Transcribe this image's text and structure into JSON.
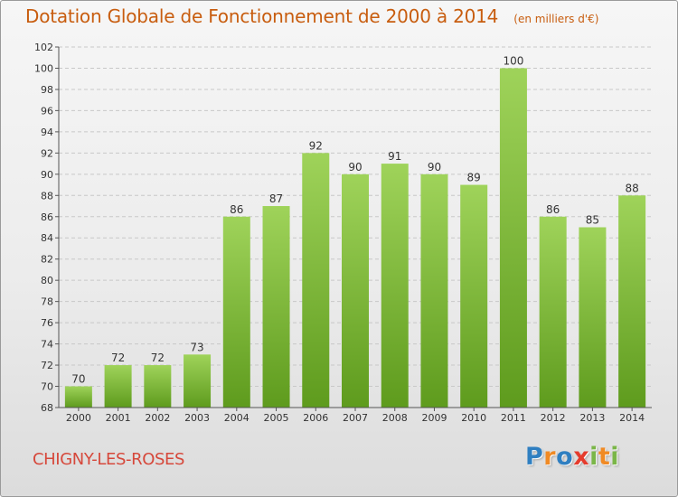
{
  "title": "Dotation Globale de Fonctionnement de 2000 à 2014",
  "unit_note": "(en milliers d'€)",
  "commune": "CHIGNY-LES-ROSES",
  "brand": {
    "name": "Proxiti",
    "letters": [
      {
        "char": "P",
        "color": "#2f7fc1"
      },
      {
        "char": "r",
        "color": "#f08a24"
      },
      {
        "char": "o",
        "color": "#2f7fc1"
      },
      {
        "char": "x",
        "color": "#e53b2c"
      },
      {
        "char": "i",
        "color": "#7ab648"
      },
      {
        "char": "t",
        "color": "#f08a24"
      },
      {
        "char": "i",
        "color": "#7ab648"
      }
    ]
  },
  "colors": {
    "title": "#c85d0f",
    "commune": "#d6483b",
    "bar_top": "#9fd35a",
    "bar_bottom": "#5e9b1d",
    "grid": "#c8c8c8"
  },
  "chart_data": {
    "type": "bar",
    "title": "Dotation Globale de Fonctionnement de 2000 à 2014",
    "subtitle": "(en milliers d'€)",
    "xlabel": "",
    "ylabel": "",
    "categories": [
      "2000",
      "2001",
      "2002",
      "2003",
      "2004",
      "2005",
      "2006",
      "2007",
      "2008",
      "2009",
      "2010",
      "2011",
      "2012",
      "2013",
      "2014"
    ],
    "values": [
      70,
      72,
      72,
      73,
      86,
      87,
      92,
      90,
      91,
      90,
      89,
      100,
      86,
      85,
      88
    ],
    "ylim": [
      68,
      102
    ],
    "yticks": [
      68,
      70,
      72,
      74,
      76,
      78,
      80,
      82,
      84,
      86,
      88,
      90,
      92,
      94,
      96,
      98,
      100,
      102
    ],
    "grid": "horizontal dashed",
    "legend": "none"
  }
}
